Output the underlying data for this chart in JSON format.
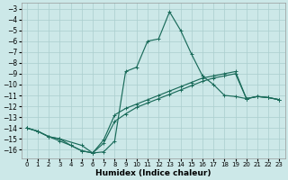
{
  "xlabel": "Humidex (Indice chaleur)",
  "bg_color": "#cce8e8",
  "grid_color": "#aacece",
  "line_color": "#1a6b5a",
  "xlim": [
    -0.5,
    23.5
  ],
  "ylim": [
    -16.8,
    -2.5
  ],
  "yticks": [
    -16,
    -15,
    -14,
    -13,
    -12,
    -11,
    -10,
    -9,
    -8,
    -7,
    -6,
    -5,
    -4,
    -3
  ],
  "xticks": [
    0,
    1,
    2,
    3,
    4,
    5,
    6,
    7,
    8,
    9,
    10,
    11,
    12,
    13,
    14,
    15,
    16,
    17,
    18,
    19,
    20,
    21,
    22,
    23
  ],
  "line1_x": [
    0,
    1,
    2,
    3,
    4,
    5,
    6,
    7,
    8,
    9,
    10,
    11,
    12,
    13,
    14,
    15,
    16,
    17,
    18,
    19,
    20,
    21,
    22,
    23
  ],
  "line1_y": [
    -14.0,
    -14.3,
    -14.8,
    -15.2,
    -15.6,
    -16.1,
    -16.3,
    -16.2,
    -15.2,
    -8.8,
    -8.4,
    -6.0,
    -5.8,
    -3.3,
    -5.0,
    -7.2,
    -9.2,
    -10.0,
    -11.0,
    -11.1,
    -11.3,
    -11.1,
    -11.2,
    -11.4
  ],
  "line2_x": [
    0,
    1,
    2,
    3,
    5,
    6,
    7,
    8,
    9,
    10,
    11,
    12,
    13,
    14,
    15,
    16,
    17,
    18,
    19,
    20,
    21,
    22,
    23
  ],
  "line2_y": [
    -14.0,
    -14.3,
    -14.8,
    -15.0,
    -15.6,
    -16.3,
    -15.4,
    -13.4,
    -12.7,
    -12.1,
    -11.7,
    -11.3,
    -10.9,
    -10.5,
    -10.1,
    -9.7,
    -9.4,
    -9.2,
    -9.0,
    -11.3,
    -11.1,
    -11.2,
    -11.4
  ],
  "line3_x": [
    0,
    1,
    2,
    3,
    4,
    5,
    6,
    7,
    8,
    9,
    10,
    11,
    12,
    13,
    14,
    15,
    16,
    17,
    18,
    19,
    20,
    21,
    22,
    23
  ],
  "line3_y": [
    -14.0,
    -14.3,
    -14.8,
    -15.0,
    -15.6,
    -16.1,
    -16.3,
    -15.1,
    -12.8,
    -12.2,
    -11.8,
    -11.4,
    -11.0,
    -10.6,
    -10.2,
    -9.8,
    -9.4,
    -9.2,
    -9.0,
    -8.8,
    -11.3,
    -11.1,
    -11.2,
    -11.4
  ]
}
